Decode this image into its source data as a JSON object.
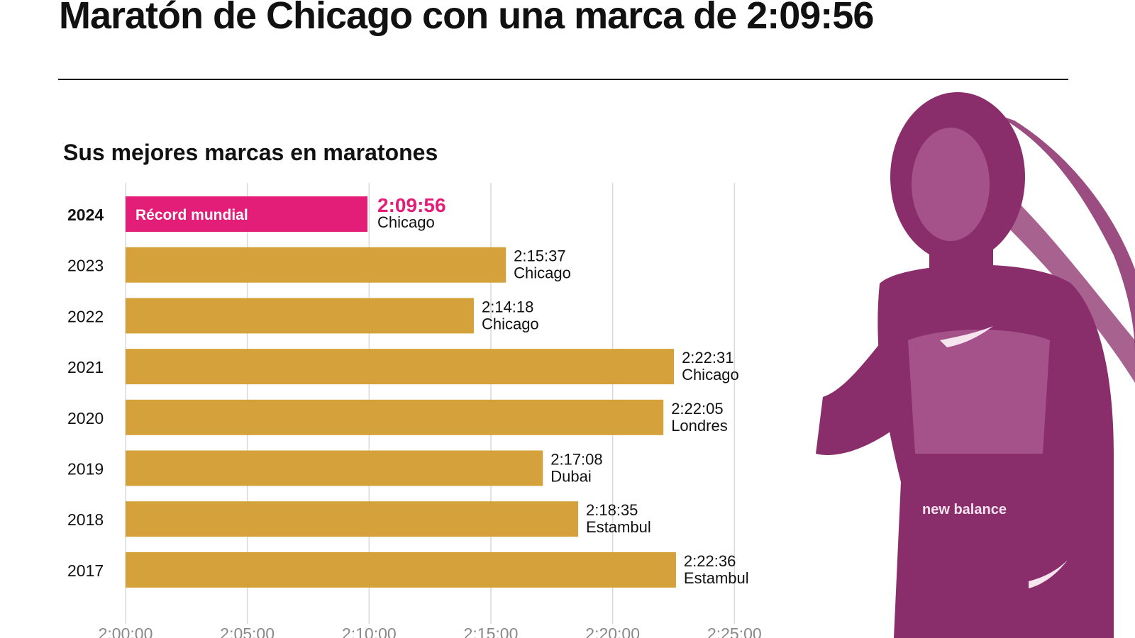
{
  "title": "Maratón de Chicago con una marca de 2:09:56",
  "chart_data": {
    "type": "bar",
    "orientation": "horizontal",
    "title": "Sus mejores marcas en maratones",
    "xlim_seconds": [
      7200,
      9000
    ],
    "x_ticks": [
      "2:00:00",
      "2:05:00",
      "2:10:00",
      "2:15:00",
      "2:20:00",
      "2:25:00"
    ],
    "x_tick_seconds": [
      7200,
      7500,
      7800,
      8100,
      8400,
      8700
    ],
    "grid": true,
    "categories": [
      "2024",
      "2023",
      "2022",
      "2021",
      "2020",
      "2019",
      "2018",
      "2017"
    ],
    "values_seconds": [
      7796,
      8137,
      8058,
      8551,
      8525,
      8228,
      8315,
      8556
    ],
    "time_labels": [
      "2:09:56",
      "2:15:37",
      "2:14:18",
      "2:22:31",
      "2:22:05",
      "2:17:08",
      "2:18:35",
      "2:22:36"
    ],
    "cities": [
      "Chicago",
      "Chicago",
      "Chicago",
      "Chicago",
      "Londres",
      "Dubai",
      "Estambul",
      "Estambul"
    ],
    "annotations": [
      {
        "category": "2024",
        "text": "Récord mundial"
      }
    ],
    "colors": {
      "highlight": "#e21e78",
      "bar": "#d4a13a",
      "grid": "#d9d9d9",
      "runner": "#8a2e6b"
    }
  }
}
